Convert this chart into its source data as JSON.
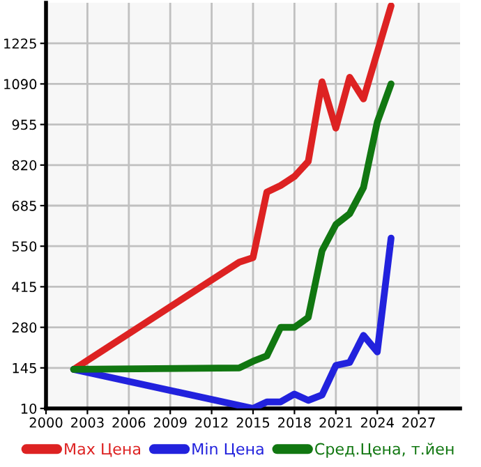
{
  "chart_data": {
    "type": "line",
    "xlim": [
      2000,
      2030
    ],
    "xticks": [
      2000,
      2003,
      2006,
      2009,
      2012,
      2015,
      2018,
      2021,
      2024,
      2027
    ],
    "ylim": [
      10,
      1360
    ],
    "yticks": [
      10,
      145,
      280,
      415,
      550,
      685,
      820,
      955,
      1090,
      1225
    ],
    "grid": true,
    "legend": "bottom",
    "marker": "none",
    "line_style": "solid",
    "series": [
      {
        "name": "Max Цена",
        "color": "#dd2222",
        "x": [
          2002,
          2014,
          2015,
          2016,
          2017,
          2018,
          2019,
          2020,
          2021,
          2022,
          2023,
          2025
        ],
        "values": [
          140,
          497,
          512,
          730,
          752,
          782,
          832,
          1097,
          943,
          1112,
          1040,
          1350
        ]
      },
      {
        "name": "Min Цена",
        "color": "#2222dd",
        "x": [
          2002,
          2015,
          2016,
          2017,
          2018,
          2019,
          2020,
          2021,
          2022,
          2023,
          2024,
          2025
        ],
        "values": [
          140,
          10,
          32,
          32,
          58,
          37,
          55,
          153,
          163,
          253,
          198,
          577
        ]
      },
      {
        "name": "Сред.Цена, т.йен",
        "color": "#117711",
        "x": [
          2002,
          2014,
          2015,
          2016,
          2017,
          2018,
          2019,
          2020,
          2021,
          2022,
          2023,
          2024,
          2025
        ],
        "values": [
          140,
          145,
          167,
          185,
          280,
          280,
          313,
          535,
          622,
          658,
          745,
          963,
          1090
        ]
      }
    ]
  }
}
